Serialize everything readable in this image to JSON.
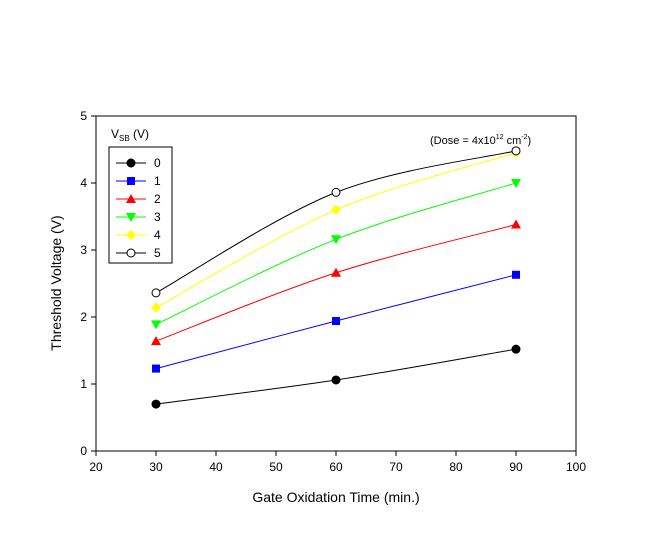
{
  "chart_data": {
    "type": "line",
    "title": "",
    "xlabel": "Gate Oxidation Time (min.)",
    "ylabel": "Threshold Voltage (V)",
    "xlim": [
      20,
      100
    ],
    "ylim": [
      0,
      5
    ],
    "xticks": [
      20,
      30,
      40,
      50,
      60,
      70,
      80,
      90,
      100
    ],
    "yticks": [
      0,
      1,
      2,
      3,
      4,
      5
    ],
    "grid": false,
    "legend_position": "top-left",
    "legend_title": {
      "main": "V",
      "sub": "SB",
      "suffix": " (V)"
    },
    "annotation": {
      "prefix": "(Dose = 4x10",
      "sup1": "12",
      "mid": " cm",
      "sup2": "-2",
      "suffix": ")"
    },
    "x": [
      30,
      60,
      90
    ],
    "series": [
      {
        "name": "0",
        "values": [
          0.7,
          1.06,
          1.52
        ],
        "color": "#000000",
        "marker": "circle-filled"
      },
      {
        "name": "1",
        "values": [
          1.23,
          1.94,
          2.63
        ],
        "color": "#0000ff",
        "marker": "square"
      },
      {
        "name": "2",
        "values": [
          1.64,
          2.66,
          3.38
        ],
        "color": "#ff0000",
        "marker": "triangle-up"
      },
      {
        "name": "3",
        "values": [
          1.89,
          3.16,
          4.0
        ],
        "color": "#00ff00",
        "marker": "triangle-down"
      },
      {
        "name": "4",
        "values": [
          2.14,
          3.6,
          4.45
        ],
        "color": "#ffff00",
        "marker": "diamond"
      },
      {
        "name": "5",
        "values": [
          2.36,
          3.86,
          4.48
        ],
        "color": "#000000",
        "marker": "circle-open"
      }
    ]
  }
}
